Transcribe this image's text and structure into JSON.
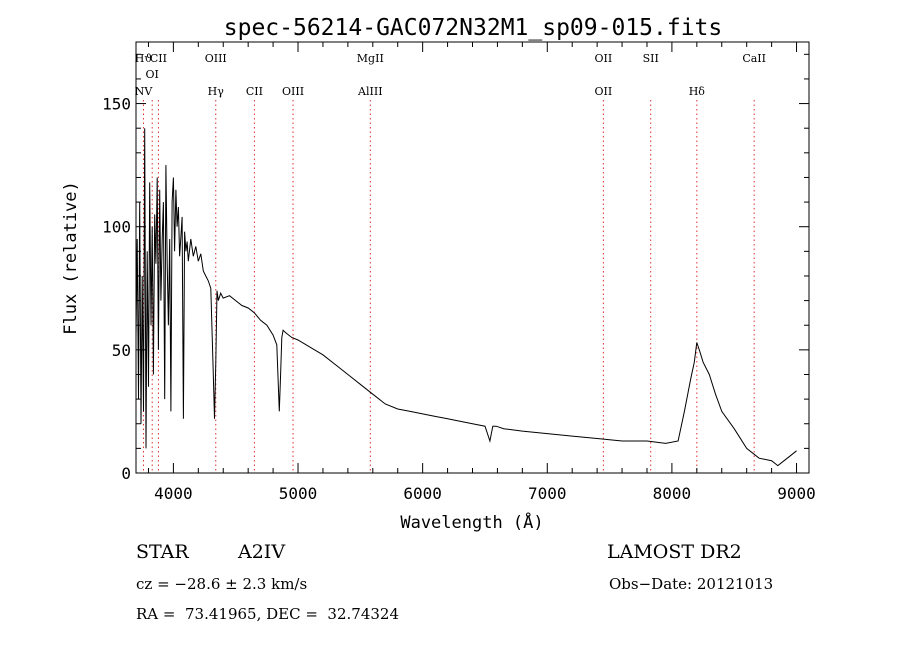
{
  "chart_data": {
    "type": "line",
    "title": "spec-56214-GAC072N32M1_sp09-015.fits",
    "xlabel": "Wavelength (Å)",
    "ylabel": "Flux (relative)",
    "xlim": [
      3700,
      9100
    ],
    "ylim": [
      0,
      175
    ],
    "x_ticks": [
      "4000",
      "5000",
      "6000",
      "7000",
      "8000",
      "9000"
    ],
    "y_ticks": [
      "0",
      "50",
      "100",
      "150"
    ],
    "grid": false,
    "series": [
      {
        "x": [
          3700,
          3710,
          3720,
          3730,
          3740,
          3750,
          3760,
          3770,
          3780,
          3790,
          3800,
          3810,
          3820,
          3830,
          3840,
          3850,
          3860,
          3870,
          3880,
          3890,
          3900,
          3910,
          3920,
          3930,
          3940,
          3950,
          3960,
          3970,
          3980,
          3990,
          4000,
          4010,
          4020,
          4030,
          4040,
          4050,
          4060,
          4070,
          4080,
          4090,
          4100,
          4110,
          4120,
          4140,
          4160,
          4180,
          4200,
          4220,
          4240,
          4260,
          4280,
          4300,
          4320,
          4330,
          4340,
          4350,
          4360,
          4380,
          4400,
          4450,
          4500,
          4550,
          4600,
          4650,
          4700,
          4750,
          4800,
          4830,
          4850,
          4860,
          4870,
          4880,
          4900,
          4950,
          5000,
          5100,
          5200,
          5300,
          5400,
          5500,
          5600,
          5700,
          5800,
          5900,
          6000,
          6100,
          6200,
          6300,
          6400,
          6500,
          6540,
          6563,
          6590,
          6650,
          6800,
          7000,
          7200,
          7400,
          7600,
          7800,
          7950,
          8050,
          8100,
          8150,
          8180,
          8200,
          8220,
          8250,
          8300,
          8350,
          8400,
          8500,
          8600,
          8700,
          8800,
          8850,
          8900,
          8950,
          9000
        ],
        "y": [
          55,
          95,
          30,
          110,
          20,
          80,
          25,
          140,
          10,
          90,
          35,
          118,
          60,
          100,
          40,
          105,
          85,
          120,
          50,
          115,
          70,
          95,
          110,
          30,
          125,
          85,
          60,
          95,
          25,
          110,
          120,
          90,
          115,
          100,
          108,
          88,
          96,
          104,
          22,
          98,
          90,
          94,
          86,
          95,
          88,
          92,
          86,
          89,
          82,
          80,
          78,
          75,
          40,
          22,
          45,
          74,
          70,
          73,
          71,
          72,
          70,
          68,
          67,
          65,
          62,
          60,
          56,
          52,
          25,
          40,
          55,
          58,
          57,
          55,
          54,
          51,
          48,
          44,
          40,
          36,
          32,
          28,
          26,
          25,
          24,
          23,
          22,
          21,
          20,
          19,
          13,
          19,
          19,
          18,
          17,
          16,
          15,
          14,
          13,
          13,
          12,
          13,
          25,
          38,
          45,
          53,
          50,
          45,
          40,
          32,
          25,
          18,
          10,
          6,
          5,
          3,
          5,
          7,
          9
        ]
      }
    ],
    "line_labels": [
      {
        "wavelength": 3760,
        "top": "Hϑ",
        "bottom": "NV"
      },
      {
        "wavelength": 3830,
        "bottom": "OI"
      },
      {
        "wavelength": 3880,
        "top": "CII"
      },
      {
        "wavelength": 4340,
        "top": "OIII",
        "bottom": "Hγ"
      },
      {
        "wavelength": 4650,
        "bottom": "CII"
      },
      {
        "wavelength": 4960,
        "bottom": "OIII"
      },
      {
        "wavelength": 5580,
        "top": "MgII",
        "bottom": "AlIII"
      },
      {
        "wavelength": 7450,
        "top": "OII",
        "bottom": "OII"
      },
      {
        "wavelength": 7830,
        "top": "SII"
      },
      {
        "wavelength": 8200,
        "bottom": "Hδ"
      },
      {
        "wavelength": 8660,
        "top": "CaII"
      }
    ]
  },
  "info": {
    "object_class": "STAR",
    "subclass": "A2IV",
    "survey": "LAMOST DR2",
    "cz": "cz = −28.6 ± 2.3 km/s",
    "obs_date": "Obs−Date: 20121013",
    "radec": "RA =  73.41965, DEC =  32.74324"
  }
}
